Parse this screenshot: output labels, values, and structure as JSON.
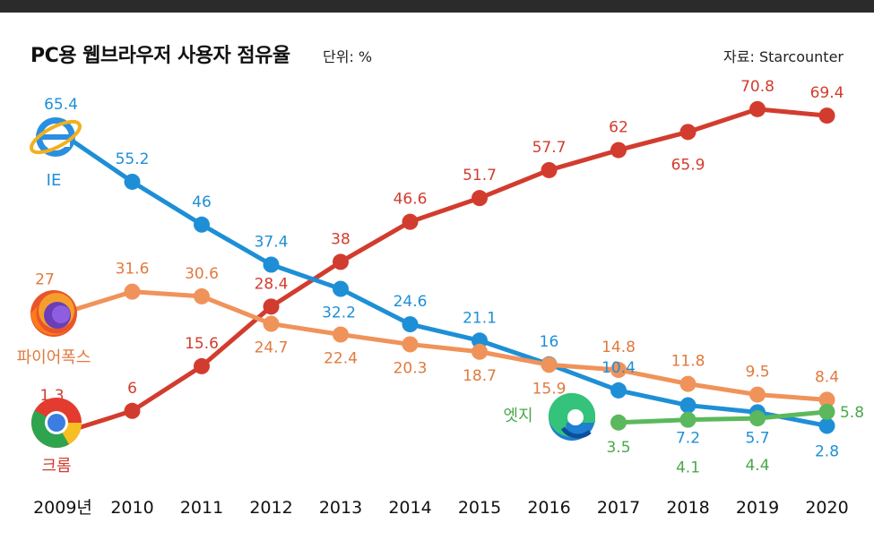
{
  "header": {
    "title": "PC용 웹브라우저 사용자 점유율",
    "unit": "단위: %",
    "source": "자료: Starcounter"
  },
  "browser_names": {
    "ie": "IE",
    "firefox": "파이어폭스",
    "chrome": "크롬",
    "edge": "엣지"
  },
  "browser_icons": {
    "ie": "internet-explorer-logo",
    "firefox": "firefox-logo",
    "chrome": "chrome-logo",
    "edge": "edge-logo"
  },
  "chart_data": {
    "type": "line",
    "x": [
      "2009년",
      "2010",
      "2011",
      "2012",
      "2013",
      "2014",
      "2015",
      "2016",
      "2017",
      "2018",
      "2019",
      "2020"
    ],
    "series": [
      {
        "name": "크롬",
        "key": "chrome",
        "color": "#d23c2e",
        "values": [
          1.3,
          6,
          15.6,
          28.4,
          38,
          46.6,
          51.7,
          57.7,
          62,
          65.9,
          70.8,
          69.4
        ]
      },
      {
        "name": "IE",
        "key": "ie",
        "color": "#1e8fd6",
        "values": [
          65.4,
          55.2,
          46,
          37.4,
          32.2,
          24.6,
          21.1,
          16,
          10.4,
          7.2,
          5.7,
          2.8
        ]
      },
      {
        "name": "파이어폭스",
        "key": "firefox",
        "color": "#f0935a",
        "values": [
          27,
          31.6,
          30.6,
          24.7,
          22.4,
          20.3,
          18.7,
          15.9,
          14.8,
          11.8,
          9.5,
          8.4
        ]
      },
      {
        "name": "엣지",
        "key": "edge",
        "color": "#5cb85c",
        "values": [
          null,
          null,
          null,
          null,
          null,
          null,
          null,
          null,
          3.5,
          4.1,
          4.4,
          5.8
        ]
      }
    ],
    "ylim": [
      0,
      75
    ],
    "grid": false,
    "legend": "none"
  }
}
